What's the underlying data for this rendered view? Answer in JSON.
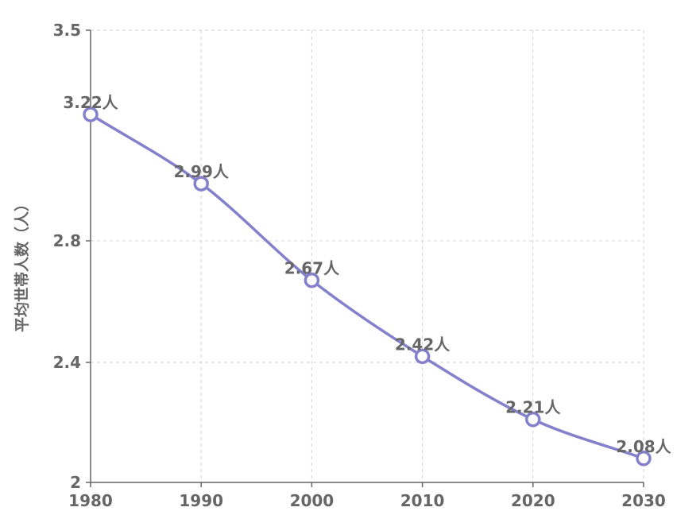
{
  "chart_data": {
    "type": "line",
    "x": [
      1980,
      1990,
      2000,
      2010,
      2020,
      2030
    ],
    "series": [
      {
        "values": [
          3.22,
          2.99,
          2.67,
          2.42,
          2.21,
          2.08
        ],
        "data_labels": [
          "3.22人",
          "2.99人",
          "2.67人",
          "2.42人",
          "2.21人",
          "2.08人"
        ],
        "color": "#8480cc"
      }
    ],
    "title": "",
    "xlabel": "",
    "ylabel": "平均世帯人数（人）",
    "xlim": [
      1980,
      2030
    ],
    "ylim": [
      2,
      3.5
    ],
    "x_ticks": [
      "1980",
      "1990",
      "2000",
      "2010",
      "2020",
      "2030"
    ],
    "y_ticks": [
      {
        "value": 2,
        "label": "2"
      },
      {
        "value": 2.4,
        "label": "2.4"
      },
      {
        "value": 2.8,
        "label": "2.8"
      },
      {
        "value": 3.5,
        "label": "3.5"
      }
    ],
    "grid": true,
    "legend": "none"
  }
}
